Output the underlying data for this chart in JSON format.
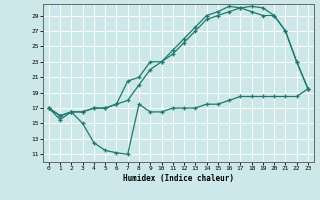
{
  "title": "",
  "xlabel": "Humidex (Indice chaleur)",
  "bg_color": "#cce8e8",
  "line_color": "#1a7a6e",
  "grid_color": "#ffffff",
  "xlim": [
    -0.5,
    23.5
  ],
  "ylim": [
    10.0,
    30.5
  ],
  "yticks": [
    11,
    13,
    15,
    17,
    19,
    21,
    23,
    25,
    27,
    29
  ],
  "xticks": [
    0,
    1,
    2,
    3,
    4,
    5,
    6,
    7,
    8,
    9,
    10,
    11,
    12,
    13,
    14,
    15,
    16,
    17,
    18,
    19,
    20,
    21,
    22,
    23
  ],
  "line1_x": [
    0,
    1,
    2,
    3,
    4,
    5,
    6,
    7,
    8,
    9,
    10,
    11,
    12,
    13,
    14,
    15,
    16,
    17,
    18,
    19,
    20,
    21,
    22,
    23
  ],
  "line1_y": [
    17,
    16,
    16.5,
    16.5,
    17,
    17,
    17.5,
    18,
    20,
    22,
    23,
    24.5,
    26,
    27.5,
    29,
    29.5,
    30.2,
    30,
    30.2,
    30,
    29,
    27,
    23,
    19.5
  ],
  "line2_x": [
    0,
    1,
    2,
    3,
    4,
    5,
    6,
    7,
    8,
    9,
    10,
    11,
    12,
    13,
    14,
    15,
    16,
    17,
    18,
    19,
    20,
    21,
    22,
    23
  ],
  "line2_y": [
    17,
    16,
    16.5,
    16.5,
    17,
    17,
    17.5,
    20.5,
    21,
    23,
    23,
    24,
    25.5,
    27,
    28.5,
    29,
    29.5,
    30,
    29.5,
    29,
    29,
    27,
    23,
    19.5
  ],
  "line3_x": [
    0,
    1,
    2,
    3,
    4,
    5,
    6,
    7,
    8,
    9,
    10,
    11,
    12,
    13,
    14,
    15,
    16,
    17,
    18,
    19,
    20,
    21,
    22,
    23
  ],
  "line3_y": [
    17,
    15.5,
    16.5,
    15,
    12.5,
    11.5,
    11.2,
    11,
    17.5,
    16.5,
    16.5,
    17,
    17,
    17,
    17.5,
    17.5,
    18,
    18.5,
    18.5,
    18.5,
    18.5,
    18.5,
    18.5,
    19.5
  ]
}
